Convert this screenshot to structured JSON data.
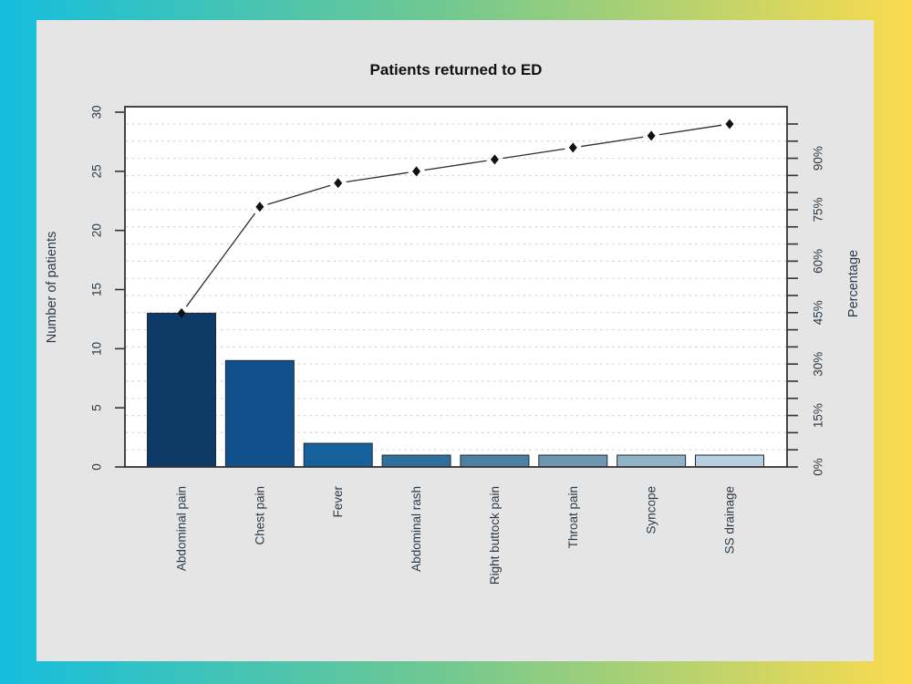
{
  "title": "Patients returned to ED",
  "axes": {
    "left_title": "Number of patients",
    "right_title": "Percentage",
    "left_tick_labels": [
      "0",
      "5",
      "10",
      "15",
      "20",
      "25",
      "30"
    ],
    "right_tick_labels": [
      "0%",
      "15%",
      "30%",
      "45%",
      "60%",
      "75%",
      "90%"
    ]
  },
  "chart_data": {
    "type": "pareto (bar + cumulative line)",
    "title": "Patients returned to ED",
    "categories": [
      "Abdominal pain",
      "Chest pain",
      "Fever",
      "Abdominal rash",
      "Right buttock pain",
      "Throat pain",
      "Syncope",
      "SS drainage"
    ],
    "values": [
      13,
      9,
      2,
      1,
      1,
      1,
      1,
      1
    ],
    "total": 29,
    "cumulative_counts": [
      13,
      22,
      24,
      25,
      26,
      27,
      28,
      29
    ],
    "cumulative_percent": [
      44.8,
      75.9,
      82.8,
      86.2,
      89.7,
      93.1,
      96.6,
      100.0
    ],
    "xlabel": "",
    "ylabel": "Number of patients",
    "y2label": "Percentage",
    "ylim": [
      0,
      30
    ],
    "y2lim_percent": [
      0,
      100
    ],
    "left_tick_step": 5,
    "right_tick_step_percent": 5,
    "right_tick_label_step_percent": 15,
    "grid": "horizontal dashed lines at every 5% of total",
    "legend_position": "none",
    "marker": "diamond",
    "bar_colors": [
      "#0d3a66",
      "#11508a",
      "#15619c",
      "#2f6f9e",
      "#4c80a4",
      "#6e96b0",
      "#91b3c8",
      "#b8cfdf"
    ],
    "bar_border_color": "#1f2a36",
    "line_color": "#2e2e2e",
    "marker_color": "#111111"
  },
  "colors": {
    "background_gradient": [
      "#14bedd",
      "#6fc891",
      "#fbdb4e"
    ],
    "panel": "#e5e5e5",
    "plot_background": "#ffffff",
    "grid_line": "#d6d6d6",
    "axis_line": "#333333",
    "text": "#2c3a47",
    "title_text": "#101010"
  }
}
